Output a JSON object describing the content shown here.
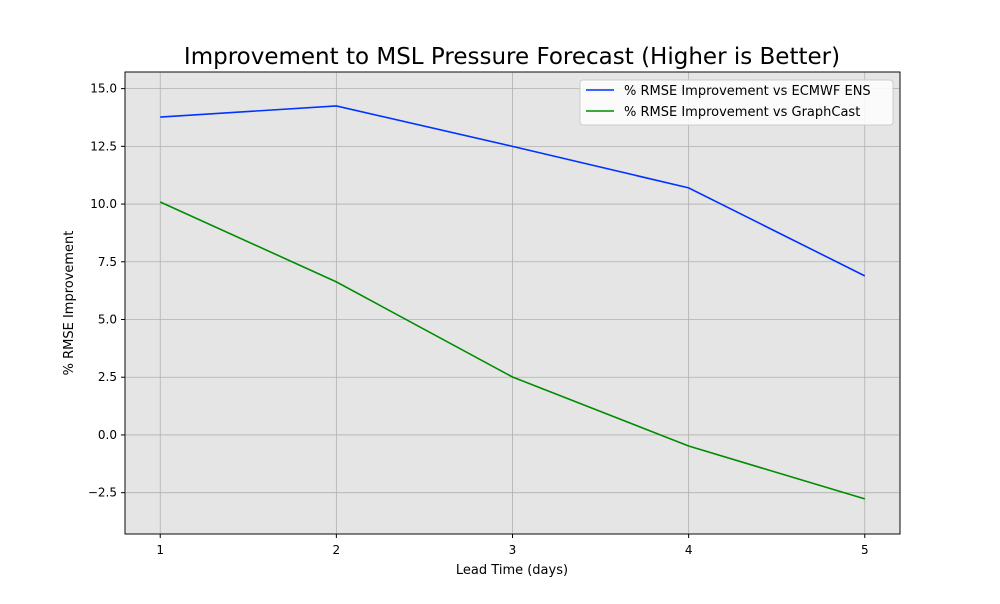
{
  "chart_data": {
    "type": "line",
    "title": "Improvement to MSL Pressure Forecast (Higher is Better)",
    "xlabel": "Lead Time (days)",
    "ylabel": "% RMSE Improvement",
    "x": [
      1,
      2,
      3,
      4,
      5
    ],
    "xticks": [
      "1",
      "2",
      "3",
      "4",
      "5"
    ],
    "yticks": [
      "−2.5",
      "0.0",
      "2.5",
      "5.0",
      "7.5",
      "10.0",
      "12.5",
      "15.0"
    ],
    "ytick_values": [
      -2.5,
      0,
      2.5,
      5,
      7.5,
      10,
      12.5,
      15
    ],
    "xlim": [
      0.8,
      5.2
    ],
    "ylim": [
      -4.29,
      15.72
    ],
    "grid": true,
    "background": "#e5e5e5",
    "legend_placement": "top-right",
    "series": [
      {
        "name": "% RMSE Improvement vs ECMWF ENS",
        "color": "#0033ff",
        "values": [
          13.77,
          14.25,
          12.5,
          10.7,
          6.89
        ]
      },
      {
        "name": "% RMSE Improvement vs GraphCast",
        "color": "#008c00",
        "values": [
          10.09,
          6.63,
          2.51,
          -0.48,
          -2.77
        ]
      }
    ]
  }
}
